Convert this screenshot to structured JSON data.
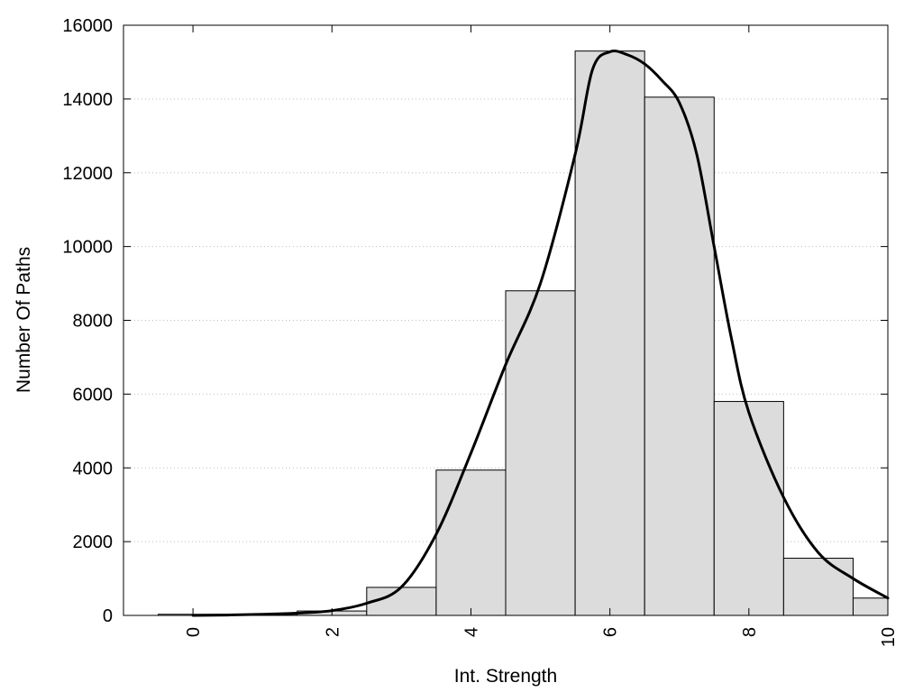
{
  "chart_data": {
    "type": "bar",
    "xlabel": "Int. Strength",
    "ylabel": "Number Of Paths",
    "xlim": [
      -1,
      10
    ],
    "ylim": [
      0,
      16000
    ],
    "x_ticks": [
      0,
      2,
      4,
      6,
      8,
      10
    ],
    "y_ticks": [
      0,
      2000,
      4000,
      6000,
      8000,
      10000,
      12000,
      14000,
      16000
    ],
    "grid": "horizontal dotted",
    "bar_color": "#dcdcdc",
    "curve_color": "#000000",
    "bins": [
      {
        "center": 0,
        "value": 30
      },
      {
        "center": 1,
        "value": 30
      },
      {
        "center": 2,
        "value": 120
      },
      {
        "center": 3,
        "value": 760
      },
      {
        "center": 4,
        "value": 3940
      },
      {
        "center": 5,
        "value": 8800
      },
      {
        "center": 6,
        "value": 15300
      },
      {
        "center": 7,
        "value": 14050
      },
      {
        "center": 8,
        "value": 5800
      },
      {
        "center": 9,
        "value": 1550
      },
      {
        "center": 10,
        "value": 470
      }
    ],
    "curve": {
      "x": [
        0,
        0.5,
        1,
        1.5,
        2,
        2.5,
        3,
        3.5,
        4,
        4.5,
        5,
        5.5,
        5.75,
        6,
        6.25,
        6.5,
        6.75,
        7,
        7.25,
        7.5,
        7.75,
        8,
        8.5,
        9,
        9.5,
        10
      ],
      "y": [
        0,
        10,
        30,
        60,
        130,
        330,
        770,
        2200,
        4400,
        6800,
        9000,
        12500,
        14800,
        15280,
        15200,
        14950,
        14500,
        13900,
        12500,
        10000,
        7500,
        5500,
        3200,
        1700,
        1000,
        470
      ]
    }
  }
}
